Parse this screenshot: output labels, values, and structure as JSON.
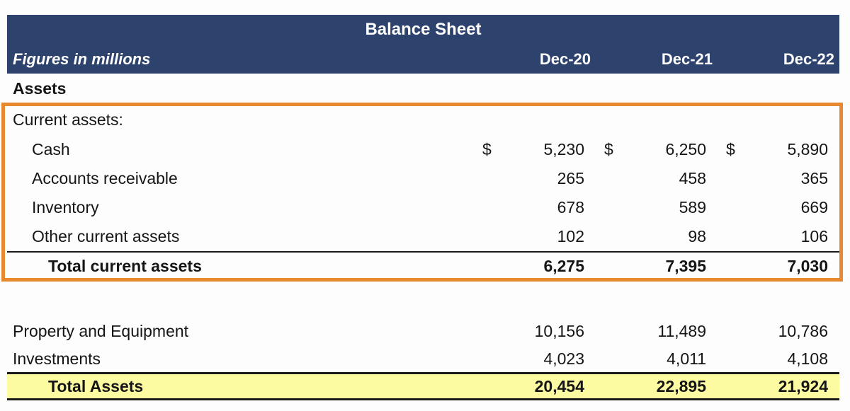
{
  "title": "Balance Sheet",
  "subtitle": "Figures in millions",
  "columns": [
    "Dec-20",
    "Dec-21",
    "Dec-22"
  ],
  "section_header": "Assets",
  "currency_symbol": "$",
  "colors": {
    "header_bg": "#2d436e",
    "highlight_box": "#e6892f",
    "total_row_bg": "#fdfba2"
  },
  "current_assets": {
    "header": "Current assets:",
    "rows": [
      {
        "label": "Cash",
        "values": [
          "5,230",
          "6,250",
          "5,890"
        ]
      },
      {
        "label": "Accounts receivable",
        "values": [
          "265",
          "458",
          "365"
        ]
      },
      {
        "label": "Inventory",
        "values": [
          "678",
          "589",
          "669"
        ]
      },
      {
        "label": "Other current assets",
        "values": [
          "102",
          "98",
          "106"
        ]
      }
    ],
    "total": {
      "label": "Total current assets",
      "values": [
        "6,275",
        "7,395",
        "7,030"
      ]
    }
  },
  "non_current_rows": [
    {
      "label": "Property and Equipment",
      "values": [
        "10,156",
        "11,489",
        "10,786"
      ]
    },
    {
      "label": "Investments",
      "values": [
        "4,023",
        "4,011",
        "4,108"
      ]
    }
  ],
  "total_assets": {
    "label": "Total Assets",
    "values": [
      "20,454",
      "22,895",
      "21,924"
    ]
  }
}
